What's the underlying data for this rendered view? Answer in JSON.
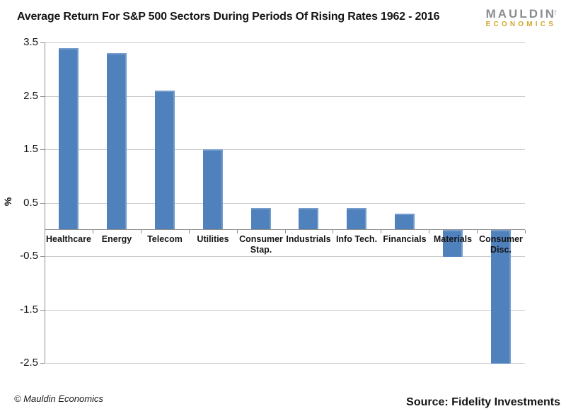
{
  "header": {
    "logo": {
      "name_top": "MAULDIN",
      "name_bottom": "ECONOMICS",
      "arrow_icon": "↑",
      "gray_color": "#8A8C8F",
      "gold_color": "#D4A62E"
    }
  },
  "chart_data": {
    "type": "bar",
    "title": "Average Return For S&P 500 Sectors During Periods Of Rising Rates 1962 - 2016",
    "categories": [
      "Healthcare",
      "Energy",
      "Telecom",
      "Utilities",
      "Consumer Stap.",
      "Industrials",
      "Info Tech.",
      "Financials",
      "Materials",
      "Consumer Disc."
    ],
    "values": [
      3.4,
      3.3,
      2.6,
      1.5,
      0.4,
      0.4,
      0.4,
      0.3,
      -0.5,
      -2.5
    ],
    "xlabel": "",
    "ylabel": "%",
    "ylim": [
      -2.5,
      3.5
    ],
    "yticks": [
      3.5,
      2.5,
      1.5,
      0.5,
      -0.5,
      -1.5,
      -2.5
    ],
    "grid": true,
    "legend": false,
    "bar_color": "#4F81BD",
    "gridline_color": "#C9C9C9",
    "axis_color": "#8F8F8F"
  },
  "footer": {
    "copyright": "© Mauldin Economics",
    "source": "Source: Fidelity Investments"
  }
}
